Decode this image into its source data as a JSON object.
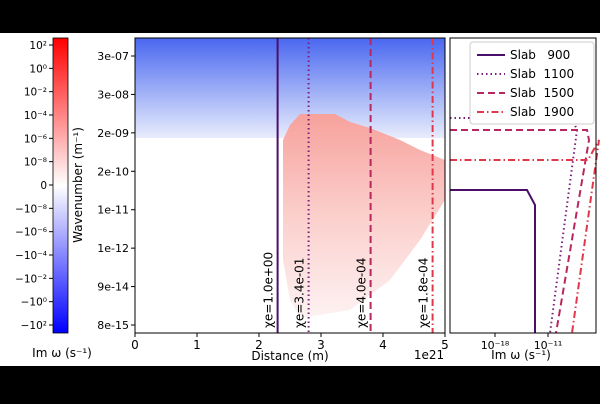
{
  "chart_data": [
    {
      "type": "heatmap",
      "xlabel": "Distance (m)",
      "ylabel": "Wavenumber (m⁻¹)",
      "x_offset_text": "1e21",
      "xlim": [
        0,
        5
      ],
      "x_ticks": [
        "0",
        "1",
        "2",
        "3",
        "4",
        "5"
      ],
      "y_ticks": [
        "3e-07",
        "3e-08",
        "2e-09",
        "2e-10",
        "1e-11",
        "1e-12",
        "9e-14",
        "8e-15"
      ],
      "vertical_lines": [
        {
          "x": 2.3,
          "label": "χe=1.0e+00",
          "color": "#4b0f6b",
          "style": "solid"
        },
        {
          "x": 2.8,
          "label": "χe=3.4e-01",
          "color": "#7b1f7a",
          "style": "dotted"
        },
        {
          "x": 3.8,
          "label": "χe=4.0e-04",
          "color": "#b8275f",
          "style": "dashed"
        },
        {
          "x": 4.8,
          "label": "χe=1.8e-04",
          "color": "#e0384a",
          "style": "dashdot"
        }
      ]
    },
    {
      "type": "colorbar",
      "label": "Im ω (s⁻¹)",
      "ticks": [
        "10²",
        "10⁰",
        "10⁻²",
        "10⁻⁴",
        "10⁻⁶",
        "10⁻⁸",
        "0",
        "−10⁻⁸",
        "−10⁻⁶",
        "−10⁻⁴",
        "−10⁻²",
        "−10⁰",
        "−10²"
      ],
      "colors": {
        "top": "#ff0000",
        "middle": "#ffffff",
        "bottom": "#0000ff"
      }
    },
    {
      "type": "line",
      "xlabel": "Im ω (s⁻¹)",
      "x_ticks": [
        "10⁻¹⁸",
        "10⁻¹¹"
      ],
      "x_scale": "log",
      "legend_position": "top-right",
      "series": [
        {
          "name": "Slab   900",
          "color": "#4b0f6b",
          "style": "solid"
        },
        {
          "name": "Slab  1100",
          "color": "#7b1f7a",
          "style": "dotted"
        },
        {
          "name": "Slab  1500",
          "color": "#b8275f",
          "style": "dashed"
        },
        {
          "name": "Slab  1900",
          "color": "#e0384a",
          "style": "dashdot"
        }
      ]
    }
  ]
}
